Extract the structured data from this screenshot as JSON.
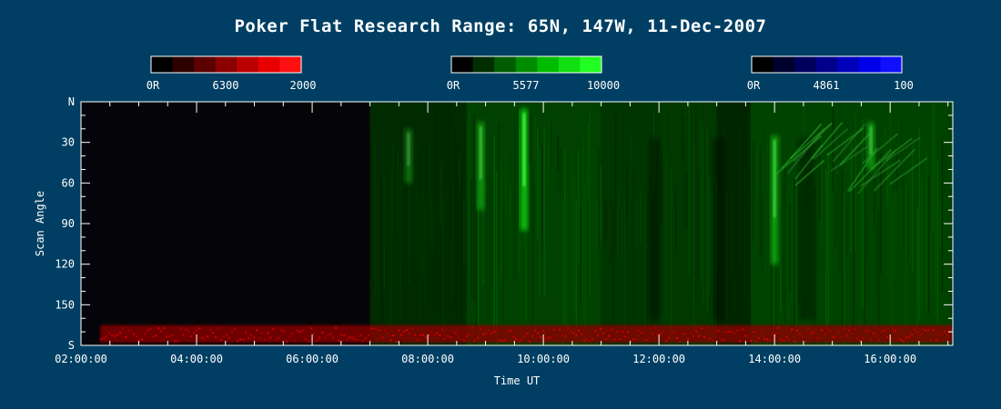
{
  "title": "Poker Flat Research Range: 65N, 147W, 11-Dec-2007",
  "colors": {
    "background": "#003f63",
    "axis": "#ffffff",
    "plot_background": "#050507"
  },
  "colorbars": [
    {
      "wavelength": "6300",
      "min_label": "0R",
      "max_label": "2000",
      "colors": [
        "#000000",
        "#2e0000",
        "#5c0000",
        "#8c0000",
        "#bb0000",
        "#e80000",
        "#ff1010"
      ]
    },
    {
      "wavelength": "5577",
      "min_label": "0R",
      "max_label": "10000",
      "colors": [
        "#000000",
        "#002e00",
        "#005c00",
        "#008c00",
        "#00bb00",
        "#10e010",
        "#22ff22"
      ]
    },
    {
      "wavelength": "4861",
      "min_label": "0R",
      "max_label": "100",
      "colors": [
        "#000000",
        "#00002e",
        "#00005c",
        "#00008c",
        "#0000bb",
        "#0000e8",
        "#1010ff"
      ]
    }
  ],
  "chart_data": {
    "type": "heatmap",
    "title": "Poker Flat Research Range: 65N, 147W, 11-Dec-2007",
    "xlabel": "Time UT",
    "ylabel": "Scan Angle",
    "xlim": [
      "02:00:00",
      "17:05:00"
    ],
    "ylim": [
      "N",
      "S"
    ],
    "xticks": [
      "02:00:00",
      "04:00:00",
      "06:00:00",
      "08:00:00",
      "10:00:00",
      "12:00:00",
      "14:00:00",
      "16:00:00"
    ],
    "yticks": [
      "N",
      "30",
      "60",
      "90",
      "120",
      "150",
      "S"
    ],
    "data_start": "02:20:00",
    "grid": false,
    "channels": [
      {
        "name": "6300",
        "color": "#ff1010",
        "max_R": 2000
      },
      {
        "name": "5577",
        "color": "#22ff22",
        "max_R": 10000
      },
      {
        "name": "4861",
        "color": "#1010ff",
        "max_R": 100
      }
    ],
    "green_segments": [
      {
        "start": "07:00:00",
        "end": "08:40:00",
        "intensity": 0.28
      },
      {
        "start": "08:40:00",
        "end": "11:00:00",
        "intensity": 0.55
      },
      {
        "start": "11:00:00",
        "end": "12:00:00",
        "intensity": 0.4
      },
      {
        "start": "12:00:00",
        "end": "13:00:00",
        "intensity": 0.45
      },
      {
        "start": "13:00:00",
        "end": "13:35:00",
        "intensity": 0.22
      },
      {
        "start": "13:35:00",
        "end": "17:05:00",
        "intensity": 0.58
      }
    ],
    "green_arcs": [
      {
        "time": "09:40:00",
        "angle_from": 5,
        "angle_to": 95,
        "intensity": 0.95
      },
      {
        "time": "08:55:00",
        "angle_from": 15,
        "angle_to": 80,
        "intensity": 0.6
      },
      {
        "time": "07:40:00",
        "angle_from": 20,
        "angle_to": 60,
        "intensity": 0.35
      },
      {
        "time": "14:00:00",
        "angle_from": 25,
        "angle_to": 120,
        "intensity": 0.7
      },
      {
        "time": "15:40:00",
        "angle_from": 15,
        "angle_to": 50,
        "intensity": 0.6
      }
    ],
    "red_band": {
      "angle_from": 165,
      "angle_to": 178,
      "start": "02:20:00",
      "end": "17:05:00",
      "intensity": 0.8
    }
  }
}
